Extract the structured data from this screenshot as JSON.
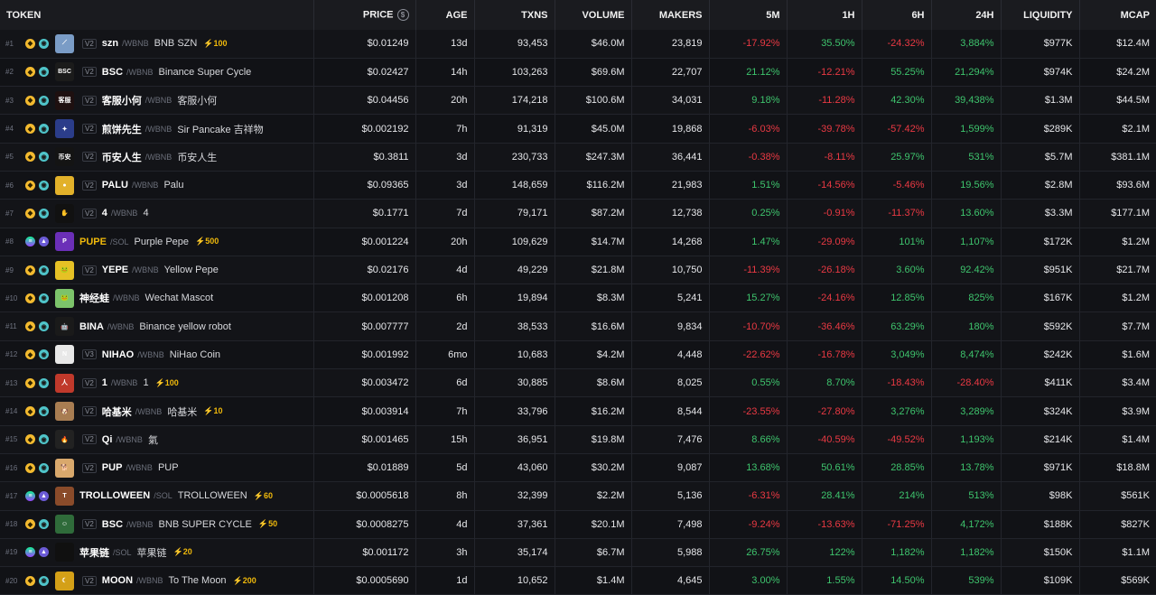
{
  "headers": {
    "token": "TOKEN",
    "price": "PRICE",
    "price_icon": "$",
    "age": "AGE",
    "txns": "TXNS",
    "volume": "VOLUME",
    "makers": "MAKERS",
    "m5": "5M",
    "h1": "1H",
    "h6": "6H",
    "h24": "24H",
    "liquidity": "LIQUIDITY",
    "mcap": "MCAP"
  },
  "colors": {
    "positive": "#3ec46d",
    "negative": "#ea3943",
    "boost": "#f0b90b",
    "background": "#0d0e12"
  },
  "rows": [
    {
      "rank": "#1",
      "chain": "bnb",
      "chain_icon": "bnb-chain-icon",
      "dex": "pcs",
      "dex_icon": "pancakeswap-icon",
      "avatar_color": "#7a9cc6",
      "avatar_text": "⟋",
      "ver": "V2",
      "symbol": "szn",
      "highlight": false,
      "pair": "/WBNB",
      "name": "BNB SZN",
      "boost": "⚡100",
      "price": "$0.01249",
      "age": "13d",
      "txns": "93,453",
      "volume": "$46.0M",
      "makers": "23,819",
      "m5": "-17.92%",
      "h1": "35.50%",
      "h6": "-24.32%",
      "h24": "3,884%",
      "liquidity": "$977K",
      "mcap": "$12.4M"
    },
    {
      "rank": "#2",
      "chain": "bnb",
      "chain_icon": "bnb-chain-icon",
      "dex": "pcs",
      "dex_icon": "pancakeswap-icon",
      "avatar_color": "#1b1b1b",
      "avatar_text": "BSC",
      "ver": "V2",
      "symbol": "BSC",
      "highlight": false,
      "pair": "/WBNB",
      "name": "Binance Super Cycle",
      "boost": "",
      "price": "$0.02427",
      "age": "14h",
      "txns": "103,263",
      "volume": "$69.6M",
      "makers": "22,707",
      "m5": "21.12%",
      "h1": "-12.21%",
      "h6": "55.25%",
      "h24": "21,294%",
      "liquidity": "$974K",
      "mcap": "$24.2M"
    },
    {
      "rank": "#3",
      "chain": "bnb",
      "chain_icon": "bnb-chain-icon",
      "dex": "pcs",
      "dex_icon": "pancakeswap-icon",
      "avatar_color": "#1e1010",
      "avatar_text": "客服",
      "ver": "V2",
      "symbol": "客服小何",
      "highlight": false,
      "pair": "/WBNB",
      "name": "客服小何",
      "boost": "",
      "price": "$0.04456",
      "age": "20h",
      "txns": "174,218",
      "volume": "$100.6M",
      "makers": "34,031",
      "m5": "9.18%",
      "h1": "-11.28%",
      "h6": "42.30%",
      "h24": "39,438%",
      "liquidity": "$1.3M",
      "mcap": "$44.5M"
    },
    {
      "rank": "#4",
      "chain": "bnb",
      "chain_icon": "bnb-chain-icon",
      "dex": "pcs",
      "dex_icon": "pancakeswap-icon",
      "avatar_color": "#2b3d8a",
      "avatar_text": "✦",
      "ver": "V2",
      "symbol": "煎饼先生",
      "highlight": false,
      "pair": "/WBNB",
      "name": "Sir Pancake 吉祥物",
      "boost": "",
      "price": "$0.002192",
      "age": "7h",
      "txns": "91,319",
      "volume": "$45.0M",
      "makers": "19,868",
      "m5": "-6.03%",
      "h1": "-39.78%",
      "h6": "-57.42%",
      "h24": "1,599%",
      "liquidity": "$289K",
      "mcap": "$2.1M"
    },
    {
      "rank": "#5",
      "chain": "bnb",
      "chain_icon": "bnb-chain-icon",
      "dex": "pcs",
      "dex_icon": "pancakeswap-icon",
      "avatar_color": "#141414",
      "avatar_text": "币安",
      "ver": "V2",
      "symbol": "币安人生",
      "highlight": false,
      "pair": "/WBNB",
      "name": "币安人生",
      "boost": "",
      "price": "$0.3811",
      "age": "3d",
      "txns": "230,733",
      "volume": "$247.3M",
      "makers": "36,441",
      "m5": "-0.38%",
      "h1": "-8.11%",
      "h6": "25.97%",
      "h24": "531%",
      "liquidity": "$5.7M",
      "mcap": "$381.1M"
    },
    {
      "rank": "#6",
      "chain": "bnb",
      "chain_icon": "bnb-chain-icon",
      "dex": "pcs",
      "dex_icon": "pancakeswap-icon",
      "avatar_color": "#e2b12a",
      "avatar_text": "●",
      "ver": "V2",
      "symbol": "PALU",
      "highlight": false,
      "pair": "/WBNB",
      "name": "Palu",
      "boost": "",
      "price": "$0.09365",
      "age": "3d",
      "txns": "148,659",
      "volume": "$116.2M",
      "makers": "21,983",
      "m5": "1.51%",
      "h1": "-14.56%",
      "h6": "-5.46%",
      "h24": "19.56%",
      "liquidity": "$2.8M",
      "mcap": "$93.6M"
    },
    {
      "rank": "#7",
      "chain": "bnb",
      "chain_icon": "bnb-chain-icon",
      "dex": "pcs",
      "dex_icon": "pancakeswap-icon",
      "avatar_color": "#111111",
      "avatar_text": "✋",
      "ver": "V2",
      "symbol": "4",
      "highlight": false,
      "pair": "/WBNB",
      "name": "4",
      "boost": "",
      "price": "$0.1771",
      "age": "7d",
      "txns": "79,171",
      "volume": "$87.2M",
      "makers": "12,738",
      "m5": "0.25%",
      "h1": "-0.91%",
      "h6": "-11.37%",
      "h24": "13.60%",
      "liquidity": "$3.3M",
      "mcap": "$177.1M"
    },
    {
      "rank": "#8",
      "chain": "sol",
      "chain_icon": "solana-chain-icon",
      "dex": "ray",
      "dex_icon": "raydium-icon",
      "avatar_color": "#6b2fb8",
      "avatar_text": "P",
      "ver": "",
      "symbol": "PUPE",
      "highlight": true,
      "pair": "/SOL",
      "name": "Purple Pepe",
      "boost": "⚡500",
      "price": "$0.001224",
      "age": "20h",
      "txns": "109,629",
      "volume": "$14.7M",
      "makers": "14,268",
      "m5": "1.47%",
      "h1": "-29.09%",
      "h6": "101%",
      "h24": "1,107%",
      "liquidity": "$172K",
      "mcap": "$1.2M"
    },
    {
      "rank": "#9",
      "chain": "bnb",
      "chain_icon": "bnb-chain-icon",
      "dex": "pcs",
      "dex_icon": "pancakeswap-icon",
      "avatar_color": "#e6c125",
      "avatar_text": "🐸",
      "ver": "V2",
      "symbol": "YEPE",
      "highlight": false,
      "pair": "/WBNB",
      "name": "Yellow Pepe",
      "boost": "",
      "price": "$0.02176",
      "age": "4d",
      "txns": "49,229",
      "volume": "$21.8M",
      "makers": "10,750",
      "m5": "-11.39%",
      "h1": "-26.18%",
      "h6": "3.60%",
      "h24": "92.42%",
      "liquidity": "$951K",
      "mcap": "$21.7M"
    },
    {
      "rank": "#10",
      "chain": "bnb",
      "chain_icon": "bnb-chain-icon",
      "dex": "pcs",
      "dex_icon": "pancakeswap-icon",
      "avatar_color": "#7cc36a",
      "avatar_text": "🐸",
      "ver": "",
      "symbol": "神经蛙",
      "highlight": false,
      "pair": "/WBNB",
      "name": "Wechat Mascot",
      "boost": "",
      "price": "$0.001208",
      "age": "6h",
      "txns": "19,894",
      "volume": "$8.3M",
      "makers": "5,241",
      "m5": "15.27%",
      "h1": "-24.16%",
      "h6": "12.85%",
      "h24": "825%",
      "liquidity": "$167K",
      "mcap": "$1.2M"
    },
    {
      "rank": "#11",
      "chain": "bnb",
      "chain_icon": "bnb-chain-icon",
      "dex": "pcs",
      "dex_icon": "pancakeswap-icon",
      "avatar_color": "#1a1a1a",
      "avatar_text": "🤖",
      "ver": "",
      "symbol": "BINA",
      "highlight": false,
      "pair": "/WBNB",
      "name": "Binance yellow robot",
      "boost": "",
      "price": "$0.007777",
      "age": "2d",
      "txns": "38,533",
      "volume": "$16.6M",
      "makers": "9,834",
      "m5": "-10.70%",
      "h1": "-36.46%",
      "h6": "63.29%",
      "h24": "180%",
      "liquidity": "$592K",
      "mcap": "$7.7M"
    },
    {
      "rank": "#12",
      "chain": "bnb",
      "chain_icon": "bnb-chain-icon",
      "dex": "pcs",
      "dex_icon": "pancakeswap-icon",
      "avatar_color": "#e8e8e8",
      "avatar_text": "N",
      "ver": "V3",
      "symbol": "NIHAO",
      "highlight": false,
      "pair": "/WBNB",
      "name": "NiHao Coin",
      "boost": "",
      "price": "$0.001992",
      "age": "6mo",
      "txns": "10,683",
      "volume": "$4.2M",
      "makers": "4,448",
      "m5": "-22.62%",
      "h1": "-16.78%",
      "h6": "3,049%",
      "h24": "8,474%",
      "liquidity": "$242K",
      "mcap": "$1.6M"
    },
    {
      "rank": "#13",
      "chain": "bnb",
      "chain_icon": "bnb-chain-icon",
      "dex": "pcs",
      "dex_icon": "pancakeswap-icon",
      "avatar_color": "#c0392b",
      "avatar_text": "人",
      "ver": "V2",
      "symbol": "1",
      "highlight": false,
      "pair": "/WBNB",
      "name": "1",
      "boost": "⚡100",
      "price": "$0.003472",
      "age": "6d",
      "txns": "30,885",
      "volume": "$8.6M",
      "makers": "8,025",
      "m5": "0.55%",
      "h1": "8.70%",
      "h6": "-18.43%",
      "h24": "-28.40%",
      "liquidity": "$411K",
      "mcap": "$3.4M"
    },
    {
      "rank": "#14",
      "chain": "bnb",
      "chain_icon": "bnb-chain-icon",
      "dex": "pcs",
      "dex_icon": "pancakeswap-icon",
      "avatar_color": "#a87d52",
      "avatar_text": "🐶",
      "ver": "V2",
      "symbol": "哈基米",
      "highlight": false,
      "pair": "/WBNB",
      "name": "哈基米",
      "boost": "⚡10",
      "price": "$0.003914",
      "age": "7h",
      "txns": "33,796",
      "volume": "$16.2M",
      "makers": "8,544",
      "m5": "-23.55%",
      "h1": "-27.80%",
      "h6": "3,276%",
      "h24": "3,289%",
      "liquidity": "$324K",
      "mcap": "$3.9M"
    },
    {
      "rank": "#15",
      "chain": "bnb",
      "chain_icon": "bnb-chain-icon",
      "dex": "pcs",
      "dex_icon": "pancakeswap-icon",
      "avatar_color": "#222222",
      "avatar_text": "🔥",
      "ver": "V2",
      "symbol": "Qi",
      "highlight": false,
      "pair": "/WBNB",
      "name": "氣",
      "boost": "",
      "price": "$0.001465",
      "age": "15h",
      "txns": "36,951",
      "volume": "$19.8M",
      "makers": "7,476",
      "m5": "8.66%",
      "h1": "-40.59%",
      "h6": "-49.52%",
      "h24": "1,193%",
      "liquidity": "$214K",
      "mcap": "$1.4M"
    },
    {
      "rank": "#16",
      "chain": "bnb",
      "chain_icon": "bnb-chain-icon",
      "dex": "pcs",
      "dex_icon": "pancakeswap-icon",
      "avatar_color": "#d9a86c",
      "avatar_text": "🐕",
      "ver": "V2",
      "symbol": "PUP",
      "highlight": false,
      "pair": "/WBNB",
      "name": "PUP",
      "boost": "",
      "price": "$0.01889",
      "age": "5d",
      "txns": "43,060",
      "volume": "$30.2M",
      "makers": "9,087",
      "m5": "13.68%",
      "h1": "50.61%",
      "h6": "28.85%",
      "h24": "13.78%",
      "liquidity": "$971K",
      "mcap": "$18.8M"
    },
    {
      "rank": "#17",
      "chain": "sol",
      "chain_icon": "solana-chain-icon",
      "dex": "ray",
      "dex_icon": "raydium-icon",
      "avatar_color": "#8a4b2a",
      "avatar_text": "T",
      "ver": "",
      "symbol": "TROLLOWEEN",
      "highlight": false,
      "pair": "/SOL",
      "name": "TROLLOWEEN",
      "boost": "⚡60",
      "price": "$0.0005618",
      "age": "8h",
      "txns": "32,399",
      "volume": "$2.2M",
      "makers": "5,136",
      "m5": "-6.31%",
      "h1": "28.41%",
      "h6": "214%",
      "h24": "513%",
      "liquidity": "$98K",
      "mcap": "$561K"
    },
    {
      "rank": "#18",
      "chain": "bnb",
      "chain_icon": "bnb-chain-icon",
      "dex": "pcs",
      "dex_icon": "pancakeswap-icon",
      "avatar_color": "#2f6b3a",
      "avatar_text": "☺",
      "ver": "V2",
      "symbol": "BSC",
      "highlight": false,
      "pair": "/WBNB",
      "name": "BNB SUPER CYCLE",
      "boost": "⚡50",
      "price": "$0.0008275",
      "age": "4d",
      "txns": "37,361",
      "volume": "$20.1M",
      "makers": "7,498",
      "m5": "-9.24%",
      "h1": "-13.63%",
      "h6": "-71.25%",
      "h24": "4,172%",
      "liquidity": "$188K",
      "mcap": "$827K"
    },
    {
      "rank": "#19",
      "chain": "sol",
      "chain_icon": "solana-chain-icon",
      "dex": "ray",
      "dex_icon": "raydium-icon",
      "avatar_color": "#101010",
      "avatar_text": "",
      "ver": "",
      "symbol": "苹果链",
      "highlight": false,
      "pair": "/SOL",
      "name": "苹果链",
      "boost": "⚡20",
      "price": "$0.001172",
      "age": "3h",
      "txns": "35,174",
      "volume": "$6.7M",
      "makers": "5,988",
      "m5": "26.75%",
      "h1": "122%",
      "h6": "1,182%",
      "h24": "1,182%",
      "liquidity": "$150K",
      "mcap": "$1.1M"
    },
    {
      "rank": "#20",
      "chain": "bnb",
      "chain_icon": "bnb-chain-icon",
      "dex": "pcs",
      "dex_icon": "pancakeswap-icon",
      "avatar_color": "#d4a017",
      "avatar_text": "☾",
      "ver": "V2",
      "symbol": "MOON",
      "highlight": false,
      "pair": "/WBNB",
      "name": "To The Moon",
      "boost": "⚡200",
      "price": "$0.0005690",
      "age": "1d",
      "txns": "10,652",
      "volume": "$1.4M",
      "makers": "4,645",
      "m5": "3.00%",
      "h1": "1.55%",
      "h6": "14.50%",
      "h24": "539%",
      "liquidity": "$109K",
      "mcap": "$569K"
    }
  ]
}
